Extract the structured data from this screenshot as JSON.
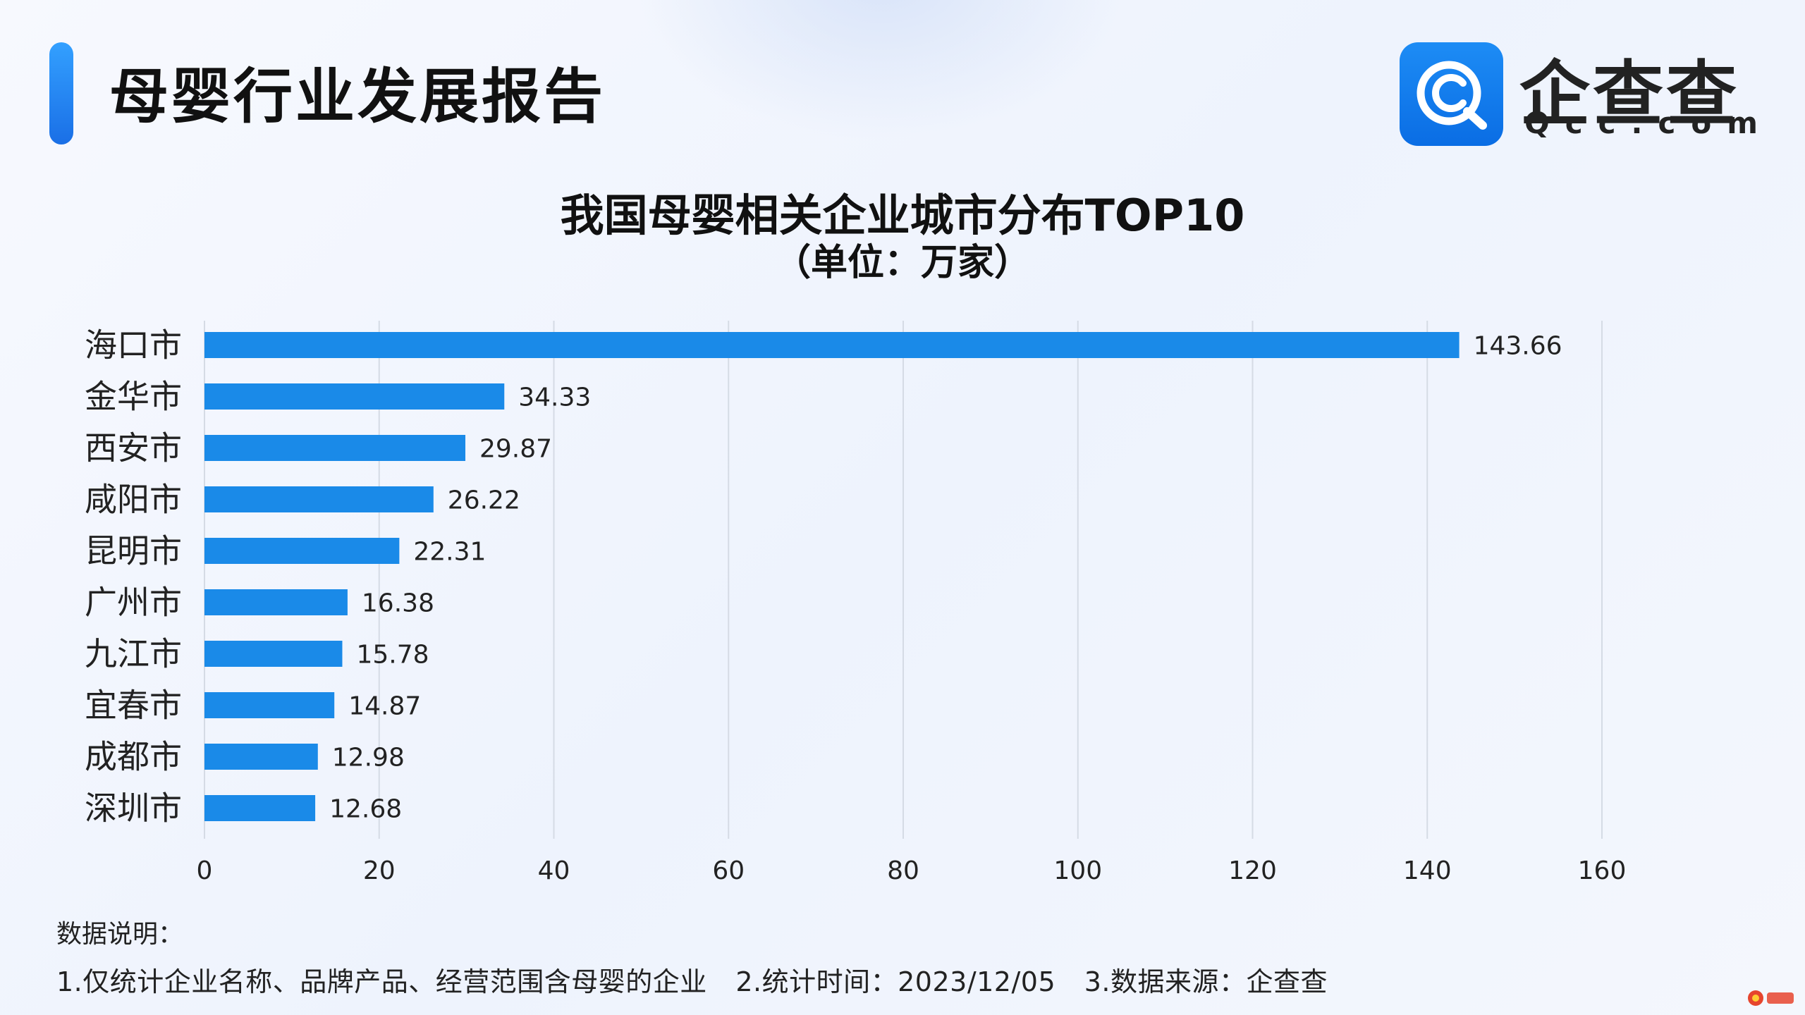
{
  "header": {
    "report_title": "母婴行业发展报告",
    "logo_cn": "企查查",
    "logo_en": "Qcc.com",
    "accent_color": "#1a7ff0"
  },
  "chart_data": {
    "type": "bar",
    "orientation": "horizontal",
    "title": "我国母婴相关企业城市分布TOP10",
    "subtitle": "（单位：万家）",
    "categories": [
      "海口市",
      "金华市",
      "西安市",
      "咸阳市",
      "昆明市",
      "广州市",
      "九江市",
      "宜春市",
      "成都市",
      "深圳市"
    ],
    "values": [
      143.66,
      34.33,
      29.87,
      26.22,
      22.31,
      16.38,
      15.78,
      14.87,
      12.98,
      12.68
    ],
    "value_labels": [
      "143.66",
      "34.33",
      "29.87",
      "26.22",
      "22.31",
      "16.38",
      "15.78",
      "14.87",
      "12.98",
      "12.68"
    ],
    "xlim": [
      0,
      160
    ],
    "xticks": [
      "0",
      "20",
      "40",
      "60",
      "80",
      "100",
      "120",
      "140",
      "160"
    ],
    "xlabel": "",
    "ylabel": "",
    "grid": "vertical",
    "bar_color": "#1a8ae8",
    "grid_color": "#d5dbe5"
  },
  "notes": {
    "heading": "数据说明：",
    "items": [
      "1.仅统计企业名称、品牌产品、经营范围含母婴的企业",
      "2.统计时间：2023/12/05",
      "3.数据来源：企查查"
    ]
  }
}
